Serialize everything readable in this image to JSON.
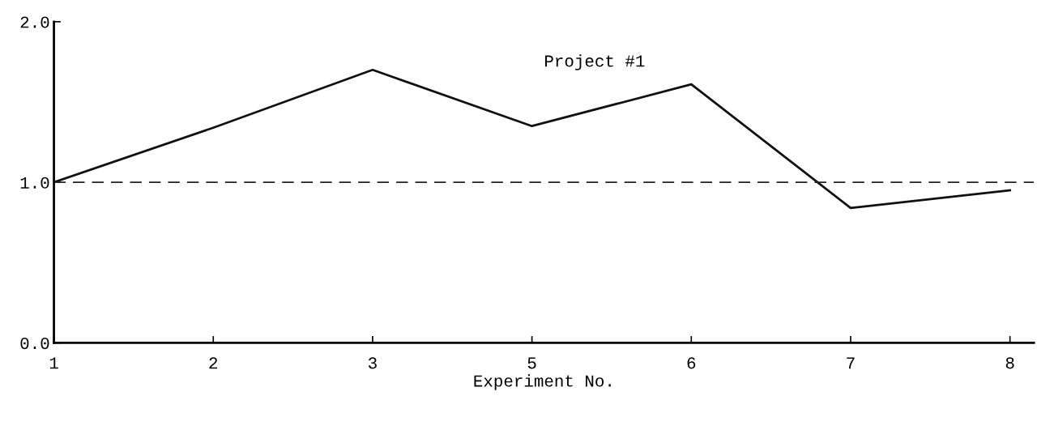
{
  "chart_data": {
    "type": "line",
    "title": "Project #1",
    "xlabel": "Experiment No.",
    "categories": [
      "1",
      "2",
      "3",
      "5",
      "6",
      "7",
      "8"
    ],
    "series": [
      {
        "color": "#111111",
        "values": [
          1.0,
          1.34,
          1.7,
          1.35,
          1.61,
          0.84,
          0.95
        ]
      }
    ],
    "ylim": [
      0,
      2.0
    ],
    "yticks": [
      {
        "value": 0,
        "label": "0.0"
      },
      {
        "value": 1,
        "label": "1.0"
      },
      {
        "value": 2,
        "label": "2.0"
      }
    ],
    "ref_lines": [
      {
        "axis": "y",
        "value": 1.0,
        "color": "#222222",
        "line_style": "dashed"
      }
    ],
    "grid": false,
    "legend": false,
    "marker": "none",
    "line_style": "solid"
  }
}
